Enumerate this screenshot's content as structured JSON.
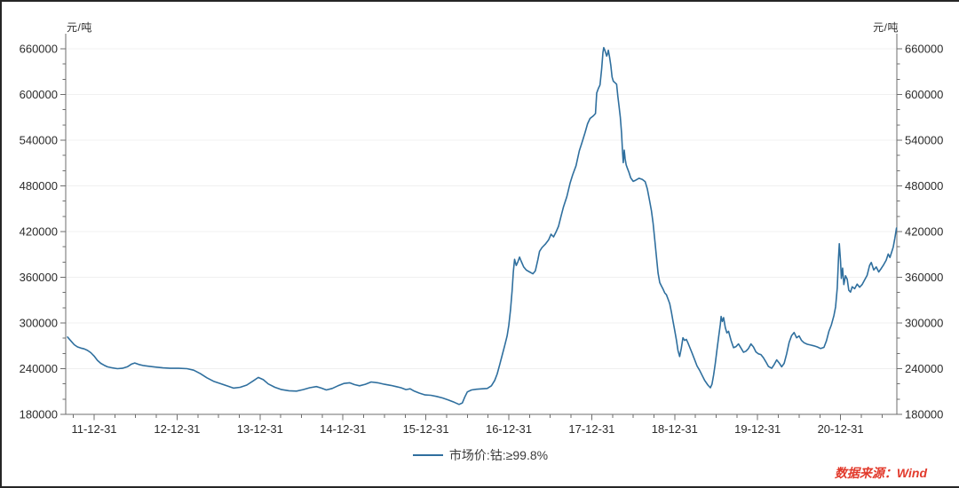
{
  "figure": {
    "unit_label_left": "元/吨",
    "unit_label_right": "元/吨",
    "legend_label": "市场价:钴:≥99.8%",
    "source": "数据来源：Wind"
  },
  "colors": {
    "line": "#2f6f9e",
    "grid": "#f0f0f0",
    "axis": "#6e6e6e",
    "text": "#2b2b2b",
    "source": "#e23a2c"
  },
  "chart_data": {
    "type": "line",
    "title": "",
    "xlabel": "",
    "ylabel": "元/吨",
    "grid": "horizontal-faint",
    "legend_position": "bottom-center",
    "y_axis": {
      "unit": "元/吨",
      "min": 180000,
      "max": 660000,
      "major_step": 60000,
      "minor_step": 20000,
      "tick_labels": [
        "180000",
        "240000",
        "300000",
        "360000",
        "420000",
        "480000",
        "540000",
        "600000",
        "660000"
      ],
      "mirrored_right": true
    },
    "x_axis": {
      "minor_interval_years": 0.25,
      "range_years": [
        2011.68,
        2021.68
      ],
      "ticks": [
        {
          "year": 2012,
          "label": "11-12-31"
        },
        {
          "year": 2013,
          "label": "12-12-31"
        },
        {
          "year": 2014,
          "label": "13-12-31"
        },
        {
          "year": 2015,
          "label": "14-12-31"
        },
        {
          "year": 2016,
          "label": "15-12-31"
        },
        {
          "year": 2017,
          "label": "16-12-31"
        },
        {
          "year": 2018,
          "label": "17-12-31"
        },
        {
          "year": 2019,
          "label": "18-12-31"
        },
        {
          "year": 2020,
          "label": "19-12-31"
        },
        {
          "year": 2021,
          "label": "20-12-31"
        }
      ]
    },
    "series": [
      {
        "name": "市场价:钴:≥99.8%",
        "color": "#2f6f9e",
        "points": [
          [
            2011.68,
            281500
          ],
          [
            2011.72,
            276500
          ],
          [
            2011.76,
            271500
          ],
          [
            2011.8,
            268500
          ],
          [
            2011.84,
            267000
          ],
          [
            2011.88,
            266000
          ],
          [
            2011.92,
            264000
          ],
          [
            2011.96,
            261000
          ],
          [
            2012.0,
            256500
          ],
          [
            2012.04,
            251000
          ],
          [
            2012.08,
            247000
          ],
          [
            2012.12,
            244500
          ],
          [
            2012.16,
            242500
          ],
          [
            2012.22,
            241000
          ],
          [
            2012.28,
            240000
          ],
          [
            2012.34,
            240500
          ],
          [
            2012.4,
            242500
          ],
          [
            2012.45,
            246000
          ],
          [
            2012.49,
            247500
          ],
          [
            2012.54,
            245500
          ],
          [
            2012.6,
            244000
          ],
          [
            2012.67,
            243000
          ],
          [
            2012.75,
            242000
          ],
          [
            2012.83,
            241000
          ],
          [
            2012.92,
            240500
          ],
          [
            2013.02,
            240500
          ],
          [
            2013.12,
            240000
          ],
          [
            2013.2,
            238000
          ],
          [
            2013.28,
            233500
          ],
          [
            2013.36,
            228000
          ],
          [
            2013.44,
            223500
          ],
          [
            2013.52,
            220500
          ],
          [
            2013.6,
            217500
          ],
          [
            2013.68,
            214500
          ],
          [
            2013.76,
            215500
          ],
          [
            2013.84,
            218500
          ],
          [
            2013.92,
            224000
          ],
          [
            2013.98,
            228500
          ],
          [
            2014.04,
            225500
          ],
          [
            2014.1,
            220000
          ],
          [
            2014.18,
            215500
          ],
          [
            2014.26,
            212500
          ],
          [
            2014.35,
            211000
          ],
          [
            2014.44,
            210500
          ],
          [
            2014.52,
            212500
          ],
          [
            2014.6,
            215000
          ],
          [
            2014.68,
            216500
          ],
          [
            2014.74,
            214500
          ],
          [
            2014.8,
            212000
          ],
          [
            2014.87,
            214000
          ],
          [
            2014.94,
            217500
          ],
          [
            2015.01,
            220500
          ],
          [
            2015.08,
            221500
          ],
          [
            2015.14,
            219000
          ],
          [
            2015.2,
            217500
          ],
          [
            2015.27,
            219500
          ],
          [
            2015.34,
            222500
          ],
          [
            2015.42,
            221500
          ],
          [
            2015.5,
            219500
          ],
          [
            2015.58,
            218000
          ],
          [
            2015.64,
            216500
          ],
          [
            2015.7,
            215000
          ],
          [
            2015.76,
            212500
          ],
          [
            2015.81,
            213500
          ],
          [
            2015.86,
            210500
          ],
          [
            2015.92,
            208000
          ],
          [
            2015.99,
            205500
          ],
          [
            2016.06,
            205000
          ],
          [
            2016.13,
            203500
          ],
          [
            2016.2,
            201500
          ],
          [
            2016.27,
            199000
          ],
          [
            2016.34,
            196000
          ],
          [
            2016.4,
            193000
          ],
          [
            2016.44,
            195000
          ],
          [
            2016.47,
            203000
          ],
          [
            2016.5,
            209500
          ],
          [
            2016.55,
            212000
          ],
          [
            2016.61,
            213000
          ],
          [
            2016.68,
            213500
          ],
          [
            2016.74,
            214000
          ],
          [
            2016.79,
            217500
          ],
          [
            2016.83,
            224500
          ],
          [
            2016.86,
            233000
          ],
          [
            2016.89,
            245000
          ],
          [
            2016.92,
            257500
          ],
          [
            2016.95,
            270000
          ],
          [
            2016.98,
            283000
          ],
          [
            2017.0,
            297000
          ],
          [
            2017.02,
            317000
          ],
          [
            2017.04,
            342000
          ],
          [
            2017.055,
            367000
          ],
          [
            2017.07,
            383500
          ],
          [
            2017.09,
            375500
          ],
          [
            2017.11,
            380500
          ],
          [
            2017.13,
            386500
          ],
          [
            2017.15,
            381000
          ],
          [
            2017.18,
            373500
          ],
          [
            2017.21,
            369500
          ],
          [
            2017.25,
            367000
          ],
          [
            2017.29,
            364500
          ],
          [
            2017.32,
            368500
          ],
          [
            2017.35,
            383000
          ],
          [
            2017.37,
            394000
          ],
          [
            2017.4,
            399000
          ],
          [
            2017.44,
            403500
          ],
          [
            2017.48,
            409000
          ],
          [
            2017.51,
            416500
          ],
          [
            2017.54,
            413000
          ],
          [
            2017.57,
            419500
          ],
          [
            2017.6,
            427000
          ],
          [
            2017.63,
            440000
          ],
          [
            2017.66,
            452500
          ],
          [
            2017.7,
            466000
          ],
          [
            2017.74,
            484000
          ],
          [
            2017.77,
            494500
          ],
          [
            2017.81,
            506500
          ],
          [
            2017.85,
            526000
          ],
          [
            2017.88,
            536000
          ],
          [
            2017.92,
            550000
          ],
          [
            2017.95,
            561500
          ],
          [
            2017.98,
            568500
          ],
          [
            2018.02,
            572000
          ],
          [
            2018.045,
            575000
          ],
          [
            2018.06,
            602000
          ],
          [
            2018.08,
            608000
          ],
          [
            2018.1,
            612500
          ],
          [
            2018.12,
            634000
          ],
          [
            2018.135,
            655000
          ],
          [
            2018.145,
            661500
          ],
          [
            2018.155,
            659000
          ],
          [
            2018.17,
            654000
          ],
          [
            2018.18,
            650500
          ],
          [
            2018.19,
            653000
          ],
          [
            2018.2,
            658000
          ],
          [
            2018.215,
            649000
          ],
          [
            2018.23,
            638000
          ],
          [
            2018.245,
            623000
          ],
          [
            2018.26,
            617500
          ],
          [
            2018.28,
            615500
          ],
          [
            2018.3,
            613500
          ],
          [
            2018.315,
            597500
          ],
          [
            2018.33,
            584000
          ],
          [
            2018.345,
            570000
          ],
          [
            2018.36,
            549000
          ],
          [
            2018.372,
            524000
          ],
          [
            2018.38,
            510500
          ],
          [
            2018.392,
            527000
          ],
          [
            2018.403,
            515500
          ],
          [
            2018.415,
            507500
          ],
          [
            2018.43,
            503000
          ],
          [
            2018.45,
            497500
          ],
          [
            2018.47,
            490500
          ],
          [
            2018.5,
            486000
          ],
          [
            2018.53,
            487500
          ],
          [
            2018.57,
            490000
          ],
          [
            2018.61,
            488500
          ],
          [
            2018.645,
            485500
          ],
          [
            2018.67,
            476000
          ],
          [
            2018.695,
            462000
          ],
          [
            2018.72,
            447500
          ],
          [
            2018.74,
            431000
          ],
          [
            2018.76,
            409000
          ],
          [
            2018.78,
            386500
          ],
          [
            2018.8,
            365500
          ],
          [
            2018.82,
            353000
          ],
          [
            2018.84,
            348500
          ],
          [
            2018.86,
            344500
          ],
          [
            2018.88,
            339500
          ],
          [
            2018.9,
            337000
          ],
          [
            2018.92,
            331500
          ],
          [
            2018.94,
            325500
          ],
          [
            2018.96,
            314500
          ],
          [
            2018.98,
            302500
          ],
          [
            2019.0,
            290500
          ],
          [
            2019.02,
            278000
          ],
          [
            2019.04,
            264000
          ],
          [
            2019.06,
            256000
          ],
          [
            2019.08,
            267000
          ],
          [
            2019.1,
            280500
          ],
          [
            2019.12,
            277000
          ],
          [
            2019.14,
            278500
          ],
          [
            2019.16,
            274000
          ],
          [
            2019.18,
            268500
          ],
          [
            2019.21,
            260500
          ],
          [
            2019.24,
            252000
          ],
          [
            2019.27,
            243500
          ],
          [
            2019.3,
            238000
          ],
          [
            2019.33,
            231500
          ],
          [
            2019.36,
            225000
          ],
          [
            2019.4,
            218500
          ],
          [
            2019.43,
            215000
          ],
          [
            2019.45,
            219500
          ],
          [
            2019.47,
            232000
          ],
          [
            2019.49,
            247500
          ],
          [
            2019.51,
            264500
          ],
          [
            2019.53,
            281500
          ],
          [
            2019.55,
            298000
          ],
          [
            2019.56,
            308500
          ],
          [
            2019.575,
            302000
          ],
          [
            2019.59,
            307000
          ],
          [
            2019.61,
            294000
          ],
          [
            2019.63,
            287000
          ],
          [
            2019.65,
            289000
          ],
          [
            2019.68,
            277000
          ],
          [
            2019.71,
            267500
          ],
          [
            2019.74,
            269000
          ],
          [
            2019.77,
            272500
          ],
          [
            2019.8,
            267000
          ],
          [
            2019.83,
            261500
          ],
          [
            2019.86,
            263000
          ],
          [
            2019.89,
            266500
          ],
          [
            2019.92,
            272500
          ],
          [
            2019.95,
            268500
          ],
          [
            2019.98,
            262000
          ],
          [
            2020.01,
            259500
          ],
          [
            2020.04,
            258500
          ],
          [
            2020.07,
            254500
          ],
          [
            2020.1,
            249000
          ],
          [
            2020.13,
            243000
          ],
          [
            2020.17,
            240500
          ],
          [
            2020.2,
            245500
          ],
          [
            2020.23,
            251500
          ],
          [
            2020.26,
            247500
          ],
          [
            2020.29,
            242500
          ],
          [
            2020.32,
            247000
          ],
          [
            2020.35,
            259500
          ],
          [
            2020.38,
            274500
          ],
          [
            2020.41,
            283500
          ],
          [
            2020.44,
            287500
          ],
          [
            2020.47,
            280500
          ],
          [
            2020.5,
            283000
          ],
          [
            2020.53,
            277000
          ],
          [
            2020.56,
            274000
          ],
          [
            2020.6,
            272000
          ],
          [
            2020.64,
            271000
          ],
          [
            2020.68,
            270000
          ],
          [
            2020.72,
            268500
          ],
          [
            2020.76,
            266500
          ],
          [
            2020.8,
            268000
          ],
          [
            2020.83,
            276500
          ],
          [
            2020.86,
            289000
          ],
          [
            2020.89,
            297500
          ],
          [
            2020.92,
            309500
          ],
          [
            2020.94,
            321000
          ],
          [
            2020.96,
            346000
          ],
          [
            2020.975,
            385000
          ],
          [
            2020.985,
            404000
          ],
          [
            2021.0,
            381000
          ],
          [
            2021.01,
            358500
          ],
          [
            2021.025,
            372000
          ],
          [
            2021.04,
            350500
          ],
          [
            2021.06,
            362000
          ],
          [
            2021.08,
            357500
          ],
          [
            2021.1,
            343000
          ],
          [
            2021.12,
            340500
          ],
          [
            2021.14,
            347500
          ],
          [
            2021.17,
            345000
          ],
          [
            2021.2,
            351000
          ],
          [
            2021.23,
            347000
          ],
          [
            2021.26,
            350500
          ],
          [
            2021.29,
            356500
          ],
          [
            2021.32,
            362500
          ],
          [
            2021.35,
            375500
          ],
          [
            2021.37,
            379500
          ],
          [
            2021.4,
            369500
          ],
          [
            2021.43,
            373500
          ],
          [
            2021.46,
            367000
          ],
          [
            2021.49,
            371500
          ],
          [
            2021.52,
            376500
          ],
          [
            2021.55,
            382500
          ],
          [
            2021.575,
            390500
          ],
          [
            2021.595,
            386000
          ],
          [
            2021.615,
            392500
          ],
          [
            2021.635,
            399500
          ],
          [
            2021.655,
            411500
          ],
          [
            2021.675,
            424500
          ]
        ]
      }
    ]
  }
}
